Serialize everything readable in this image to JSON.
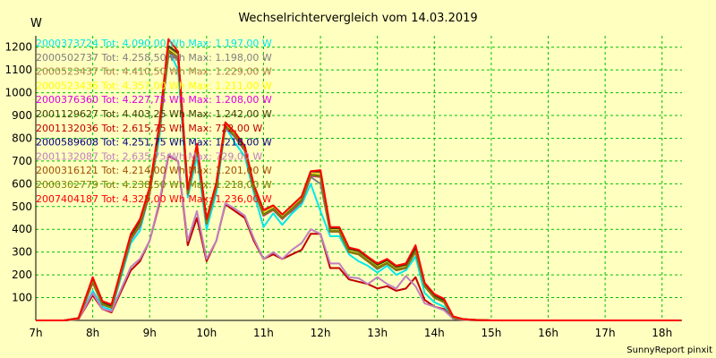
{
  "chart_data": {
    "type": "line",
    "title": "Wechselrichtervergleich vom 14.03.2019",
    "ylabel": "W",
    "ylim": [
      0,
      1250
    ],
    "xlim": [
      7,
      18.35
    ],
    "grid": true,
    "legend_position": "top-left",
    "x_ticks": [
      7,
      8,
      9,
      10,
      11,
      12,
      13,
      14,
      15,
      16,
      17,
      18
    ],
    "x_tick_labels": [
      "7h",
      "8h",
      "9h",
      "10h",
      "11h",
      "12h",
      "13h",
      "14h",
      "15h",
      "16h",
      "17h",
      "18h"
    ],
    "y_ticks": [
      100,
      200,
      300,
      400,
      500,
      600,
      700,
      800,
      900,
      1000,
      1100,
      1200
    ],
    "y_tick_labels": [
      "100",
      "200",
      "300",
      "400",
      "500",
      "600",
      "700",
      "800",
      "900",
      "1000",
      "1100",
      "1200"
    ],
    "x": [
      7.0,
      7.25,
      7.5,
      7.75,
      8.0,
      8.17,
      8.33,
      8.67,
      8.83,
      9.0,
      9.17,
      9.33,
      9.5,
      9.67,
      9.83,
      10.0,
      10.17,
      10.33,
      10.5,
      10.67,
      10.83,
      11.0,
      11.17,
      11.33,
      11.5,
      11.67,
      11.83,
      12.0,
      12.17,
      12.33,
      12.5,
      12.67,
      12.83,
      13.0,
      13.17,
      13.33,
      13.5,
      13.67,
      13.83,
      14.0,
      14.17,
      14.33,
      14.5,
      14.67,
      14.83,
      15.0,
      15.17,
      15.33,
      15.5,
      15.67,
      15.83,
      16.0,
      16.17,
      16.33,
      16.5,
      16.67,
      16.83,
      17.0,
      17.17,
      17.33,
      17.5,
      17.67,
      17.83,
      18.0,
      18.17,
      18.33
    ],
    "series": [
      {
        "name": "2000373724 Tot: 4.090,00 Wh Max: 1.197,00 W",
        "color": "#00e8e8",
        "values": [
          0,
          0,
          0,
          5,
          130,
          60,
          45,
          340,
          395,
          560,
          800,
          1190,
          1100,
          540,
          720,
          400,
          560,
          850,
          780,
          720,
          560,
          410,
          470,
          420,
          470,
          510,
          600,
          480,
          370,
          370,
          290,
          260,
          240,
          210,
          240,
          200,
          220,
          280,
          120,
          80,
          60,
          10,
          5,
          2,
          0,
          0,
          0,
          0,
          0,
          0,
          0,
          0,
          0,
          0,
          0,
          0,
          0,
          0,
          0,
          0,
          0,
          0,
          0,
          0,
          0,
          0
        ]
      },
      {
        "name": "2000502737 Tot: 4.258,50 Wh Max: 1.198,00 W",
        "color": "#808080",
        "values": [
          0,
          0,
          0,
          10,
          175,
          75,
          60,
          365,
          425,
          565,
          830,
          1160,
          1150,
          560,
          760,
          430,
          590,
          855,
          810,
          750,
          580,
          460,
          490,
          450,
          480,
          520,
          630,
          600,
          390,
          390,
          300,
          290,
          260,
          225,
          250,
          220,
          230,
          300,
          150,
          100,
          80,
          15,
          5,
          3,
          1,
          0,
          0,
          0,
          0,
          0,
          0,
          0,
          0,
          0,
          0,
          0,
          0,
          0,
          0,
          0,
          0,
          0,
          0,
          0,
          0,
          0
        ]
      },
      {
        "name": "2000523437 Tot: 4.410,50 Wh Max: 1.229,00 W",
        "color": "#b08040",
        "values": [
          0,
          0,
          0,
          10,
          180,
          80,
          65,
          370,
          440,
          575,
          850,
          1200,
          1170,
          570,
          770,
          440,
          600,
          865,
          820,
          760,
          590,
          480,
          500,
          460,
          500,
          540,
          650,
          650,
          400,
          400,
          310,
          300,
          270,
          240,
          260,
          230,
          240,
          320,
          160,
          110,
          90,
          15,
          6,
          3,
          1,
          0,
          0,
          0,
          0,
          0,
          0,
          0,
          0,
          0,
          0,
          0,
          0,
          0,
          0,
          0,
          0,
          0,
          0,
          0,
          0,
          0
        ]
      },
      {
        "name": "2000523436 Tot: 4.357,00 Wh Max: 1.211,00 W",
        "color": "#ffff00",
        "values": [
          0,
          0,
          0,
          8,
          170,
          70,
          55,
          360,
          420,
          560,
          840,
          1190,
          1160,
          560,
          760,
          430,
          590,
          860,
          815,
          755,
          585,
          470,
          495,
          455,
          495,
          535,
          645,
          640,
          395,
          395,
          305,
          295,
          265,
          235,
          255,
          225,
          235,
          310,
          155,
          105,
          85,
          15,
          5,
          3,
          1,
          0,
          0,
          0,
          0,
          0,
          0,
          0,
          0,
          0,
          0,
          0,
          0,
          0,
          0,
          0,
          0,
          0,
          0,
          0,
          0,
          0
        ]
      },
      {
        "name": "2000376360 Tot: 4.227,75 Wh Max: 1.208,00 W",
        "color": "#e000e0",
        "values": [
          0,
          0,
          0,
          8,
          165,
          70,
          55,
          355,
          415,
          555,
          830,
          1180,
          1150,
          555,
          755,
          425,
          585,
          850,
          805,
          745,
          575,
          460,
          485,
          445,
          485,
          525,
          635,
          630,
          390,
          390,
          300,
          290,
          260,
          230,
          250,
          220,
          230,
          305,
          150,
          100,
          80,
          12,
          5,
          2,
          1,
          0,
          0,
          0,
          0,
          0,
          0,
          0,
          0,
          0,
          0,
          0,
          0,
          0,
          0,
          0,
          0,
          0,
          0,
          0,
          0,
          0
        ]
      },
      {
        "name": "2001129627 Tot: 4.403,25 Wh Max: 1.242,00 W",
        "color": "#404000",
        "values": [
          0,
          0,
          0,
          10,
          180,
          80,
          65,
          370,
          440,
          580,
          855,
          1205,
          1175,
          570,
          770,
          440,
          600,
          870,
          825,
          765,
          595,
          485,
          505,
          465,
          505,
          545,
          655,
          655,
          405,
          405,
          315,
          305,
          275,
          245,
          265,
          235,
          245,
          320,
          160,
          110,
          90,
          16,
          6,
          3,
          1,
          0,
          0,
          0,
          0,
          0,
          0,
          0,
          0,
          0,
          0,
          0,
          0,
          0,
          0,
          0,
          0,
          0,
          0,
          0,
          0,
          0
        ]
      },
      {
        "name": "2001132036 Tot: 2.615,75 Wh Max: 722,00 W",
        "color": "#c00000",
        "values": [
          0,
          0,
          0,
          5,
          110,
          50,
          35,
          220,
          260,
          350,
          510,
          722,
          700,
          330,
          450,
          260,
          350,
          510,
          480,
          450,
          350,
          270,
          290,
          270,
          290,
          310,
          380,
          380,
          230,
          230,
          180,
          170,
          160,
          140,
          150,
          130,
          140,
          190,
          90,
          60,
          50,
          8,
          3,
          1,
          0,
          0,
          0,
          0,
          0,
          0,
          0,
          0,
          0,
          0,
          0,
          0,
          0,
          0,
          0,
          0,
          0,
          0,
          0,
          0,
          0,
          0
        ]
      },
      {
        "name": "2000589608 Tot: 4.251,75 Wh Max: 1.218,00 W",
        "color": "#000080",
        "values": [
          0,
          0,
          0,
          8,
          170,
          72,
          58,
          360,
          420,
          560,
          835,
          1185,
          1155,
          558,
          758,
          428,
          588,
          855,
          810,
          750,
          580,
          465,
          490,
          450,
          490,
          530,
          640,
          635,
          392,
          392,
          302,
          292,
          262,
          232,
          252,
          222,
          232,
          305,
          152,
          102,
          82,
          12,
          5,
          2,
          1,
          0,
          0,
          0,
          0,
          0,
          0,
          0,
          0,
          0,
          0,
          0,
          0,
          0,
          0,
          0,
          0,
          0,
          0,
          0,
          0,
          0
        ]
      },
      {
        "name": "2001132087 Tot: 2.635,75 Wh Max: 729,00 W",
        "color": "#c080c0",
        "values": [
          0,
          0,
          0,
          5,
          120,
          50,
          40,
          235,
          270,
          350,
          520,
          729,
          700,
          350,
          480,
          270,
          350,
          515,
          490,
          460,
          360,
          270,
          300,
          270,
          310,
          340,
          400,
          380,
          250,
          250,
          190,
          185,
          160,
          190,
          160,
          140,
          195,
          150,
          75,
          60,
          45,
          8,
          3,
          1,
          0,
          0,
          0,
          0,
          0,
          0,
          0,
          0,
          0,
          0,
          0,
          0,
          0,
          0,
          0,
          0,
          0,
          0,
          0,
          0,
          0,
          0
        ]
      },
      {
        "name": "2000316121 Tot: 4.214,00 Wh Max: 1.201,00 W",
        "color": "#a05000",
        "values": [
          0,
          0,
          0,
          8,
          168,
          70,
          56,
          358,
          418,
          558,
          832,
          1182,
          1152,
          556,
          756,
          426,
          586,
          852,
          808,
          748,
          578,
          462,
          487,
          447,
          487,
          527,
          637,
          632,
          390,
          390,
          300,
          290,
          260,
          230,
          250,
          220,
          230,
          302,
          150,
          100,
          80,
          12,
          5,
          2,
          1,
          0,
          0,
          0,
          0,
          0,
          0,
          0,
          0,
          0,
          0,
          0,
          0,
          0,
          0,
          0,
          0,
          0,
          0,
          0,
          0,
          0
        ]
      },
      {
        "name": "2000302779 Tot: 4.238,50 Wh Max: 1.218,00 W",
        "color": "#808000",
        "values": [
          0,
          0,
          0,
          8,
          170,
          72,
          57,
          360,
          420,
          560,
          834,
          1184,
          1154,
          557,
          757,
          427,
          587,
          854,
          809,
          749,
          579,
          463,
          488,
          448,
          488,
          528,
          638,
          634,
          391,
          391,
          301,
          291,
          261,
          231,
          251,
          221,
          231,
          304,
          151,
          101,
          81,
          12,
          5,
          2,
          1,
          0,
          0,
          0,
          0,
          0,
          0,
          0,
          0,
          0,
          0,
          0,
          0,
          0,
          0,
          0,
          0,
          0,
          0,
          0,
          0,
          0
        ]
      },
      {
        "name": "2007404187 Tot: 4.325,00 Wh Max: 1.236,00 W",
        "color": "#ff0000",
        "values": [
          0,
          0,
          0,
          10,
          190,
          85,
          70,
          380,
          445,
          585,
          860,
          1236,
          1180,
          575,
          775,
          445,
          605,
          870,
          825,
          765,
          595,
          485,
          505,
          465,
          505,
          545,
          655,
          660,
          410,
          410,
          320,
          310,
          280,
          250,
          270,
          240,
          250,
          330,
          165,
          115,
          95,
          18,
          6,
          3,
          1,
          0,
          0,
          0,
          0,
          0,
          0,
          0,
          0,
          0,
          0,
          0,
          0,
          0,
          0,
          0,
          0,
          0,
          0,
          0,
          0,
          0
        ]
      }
    ]
  },
  "footer": "SunnyReport pinxit"
}
